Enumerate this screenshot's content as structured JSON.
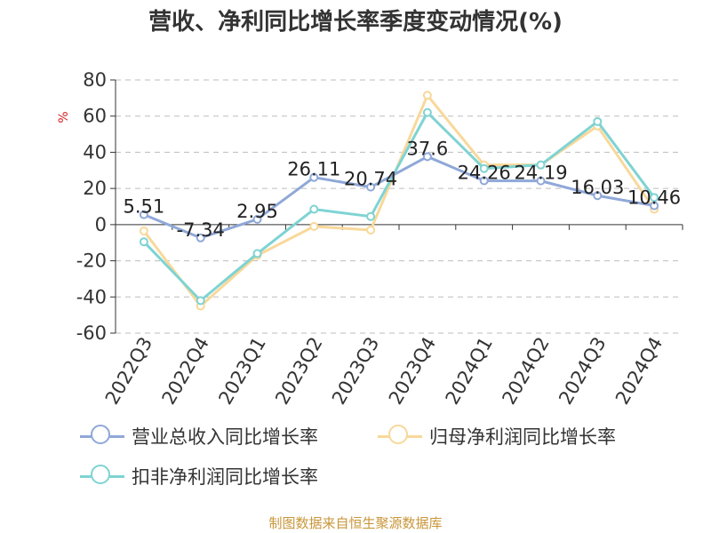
{
  "title": "营收、净利同比增长率季度变动情况(%)",
  "source": "制图数据来自恒生聚源数据库",
  "chart_data": {
    "type": "line",
    "ylabel": "%",
    "ylim": [
      -60,
      80
    ],
    "yticks": [
      80,
      60,
      40,
      20,
      0,
      -20,
      -40,
      -60
    ],
    "grid": true,
    "legend_position": "bottom",
    "categories": [
      "2022Q3",
      "2022Q4",
      "2023Q1",
      "2023Q2",
      "2023Q3",
      "2023Q4",
      "2024Q1",
      "2024Q2",
      "2024Q3",
      "2024Q4"
    ],
    "series": [
      {
        "name": "营业总收入同比增长率",
        "color": "#8fa8d8",
        "values": [
          5.51,
          -7.34,
          2.95,
          26.11,
          20.74,
          37.6,
          24.26,
          24.19,
          16.03,
          10.46
        ],
        "labels": [
          "5.51",
          "-7.34",
          "2.95",
          "26.11",
          "20.74",
          "37.6",
          "24.26",
          "24.19",
          "16.03",
          "10.46"
        ]
      },
      {
        "name": "归母净利润同比增长率",
        "color": "#f8d89a",
        "values": [
          -3.5,
          -45,
          -17,
          -1,
          -3,
          71.5,
          33,
          33,
          54.5,
          8.5
        ]
      },
      {
        "name": "扣非净利润同比增长率",
        "color": "#7fd3d3",
        "values": [
          -9.5,
          -42,
          -16,
          8.5,
          4.5,
          62,
          31,
          33,
          57,
          15
        ]
      }
    ]
  }
}
